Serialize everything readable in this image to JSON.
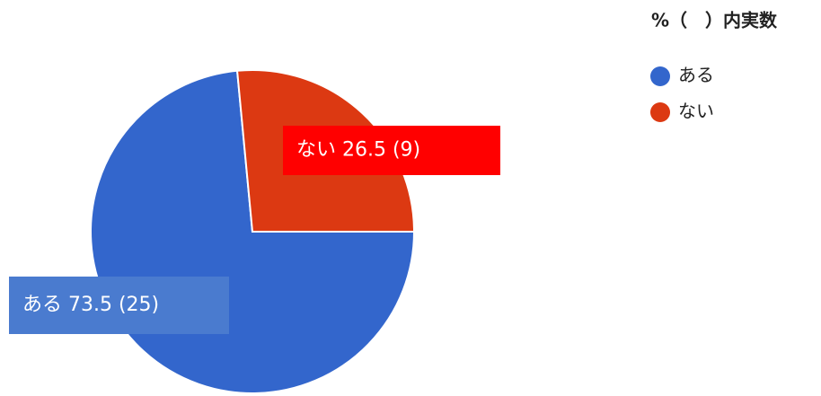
{
  "chart_data": {
    "type": "pie",
    "title": "%（　）内実数",
    "categories": [
      "ある",
      "ない"
    ],
    "values": [
      73.5,
      26.5
    ],
    "value_labels": [
      "ある 73.5 (25)",
      "ない 26.5 (9)"
    ],
    "colors": [
      "#3366cc",
      "#dc3912"
    ],
    "legend": "right"
  }
}
